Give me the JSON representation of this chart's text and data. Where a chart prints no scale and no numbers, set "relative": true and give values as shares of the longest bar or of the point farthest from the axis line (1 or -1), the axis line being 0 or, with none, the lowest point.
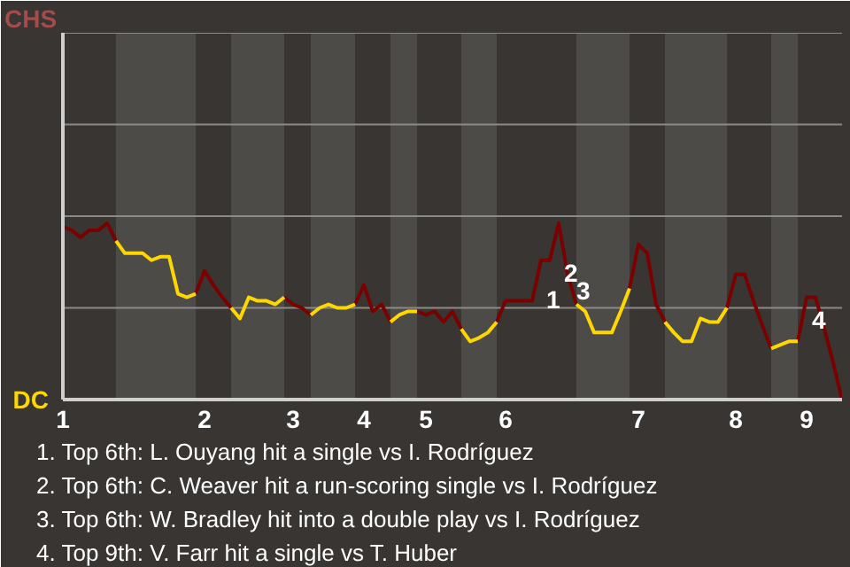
{
  "chart_data": {
    "type": "line",
    "relative": true,
    "categories": [
      "1",
      null,
      null,
      null,
      null,
      null,
      null,
      null,
      null,
      null,
      null,
      null,
      null,
      null,
      null,
      null,
      "2",
      null,
      null,
      null,
      null,
      null,
      null,
      null,
      null,
      null,
      "3",
      null,
      null,
      null,
      null,
      null,
      null,
      null,
      "4",
      null,
      null,
      null,
      null,
      null,
      null,
      "5",
      null,
      null,
      null,
      null,
      null,
      null,
      null,
      null,
      "6",
      null,
      null,
      null,
      null,
      null,
      null,
      null,
      null,
      null,
      null,
      null,
      null,
      null,
      null,
      "7",
      null,
      null,
      null,
      null,
      null,
      null,
      null,
      null,
      null,
      null,
      "8",
      null,
      null,
      null,
      null,
      null,
      null,
      null,
      "9",
      null,
      null,
      null,
      null
    ],
    "ref_lines": [
      {
        "axis": "y",
        "value": 0.52,
        "color": "#8c8a88"
      },
      {
        "axis": "y",
        "value": 1.04,
        "color": "#8c8a88"
      },
      {
        "axis": "y",
        "value": 1.56,
        "color": "#8c8a88"
      },
      {
        "axis": "y",
        "value": 2.08,
        "color": "#8c8a88"
      }
    ],
    "series": [
      {
        "color": "#7b0000",
        "values": [
          0.98,
          0.96,
          0.92,
          0.96,
          0.96,
          1,
          0.9,
          null,
          null,
          null,
          null,
          null,
          null,
          null,
          null,
          0.6,
          0.73,
          0.65,
          0.58,
          0.52,
          null,
          null,
          null,
          null,
          null,
          0.58,
          0.54,
          0.52,
          0.48,
          null,
          null,
          null,
          null,
          0.54,
          0.65,
          0.5,
          0.54,
          0.44,
          null,
          null,
          0.5,
          0.48,
          0.5,
          0.44,
          0.5,
          0.4,
          null,
          null,
          null,
          0.44,
          0.56,
          0.56,
          0.56,
          0.56,
          0.79,
          0.79,
          1,
          0.71,
          0.54,
          null,
          null,
          null,
          null,
          null,
          0.63,
          0.88,
          0.83,
          0.54,
          0.44,
          null,
          null,
          null,
          null,
          null,
          null,
          0.52,
          0.71,
          0.71,
          0.56,
          0.42,
          0.29,
          null,
          null,
          0.33,
          0.58,
          0.58,
          0.4,
          0.21,
          0
        ]
      },
      {
        "color": "#ffd700",
        "values": [
          null,
          null,
          null,
          null,
          null,
          null,
          0.9,
          0.83,
          0.83,
          0.83,
          0.79,
          0.81,
          0.81,
          0.6,
          0.58,
          0.6,
          null,
          null,
          null,
          0.52,
          0.46,
          0.58,
          0.56,
          0.56,
          0.54,
          0.58,
          null,
          null,
          0.48,
          0.52,
          0.54,
          0.52,
          0.52,
          0.54,
          null,
          null,
          null,
          0.44,
          0.48,
          0.5,
          0.5,
          null,
          null,
          null,
          null,
          0.4,
          0.33,
          0.35,
          0.38,
          0.44,
          null,
          null,
          null,
          null,
          null,
          null,
          null,
          null,
          0.54,
          0.5,
          0.38,
          0.38,
          0.38,
          0.5,
          0.63,
          null,
          null,
          null,
          0.44,
          0.38,
          0.33,
          0.33,
          0.46,
          0.44,
          0.44,
          0.52,
          null,
          null,
          null,
          null,
          0.29,
          0.31,
          0.33,
          0.33,
          null,
          null,
          null,
          null,
          null
        ]
      }
    ],
    "annotations": [
      "1",
      "2",
      "3",
      "4",
      "CHS",
      "DC",
      "1. Top 6th: L. Ouyang hit a single vs I. Rodríguez",
      "2. Top 6th: C. Weaver hit a run-scoring single vs I. Rodríguez",
      "3. Top 6th: W. Bradley hit into a double play vs I. Rodríguez",
      "4. Top 9th: V. Farr hit a single vs T. Huber"
    ]
  }
}
